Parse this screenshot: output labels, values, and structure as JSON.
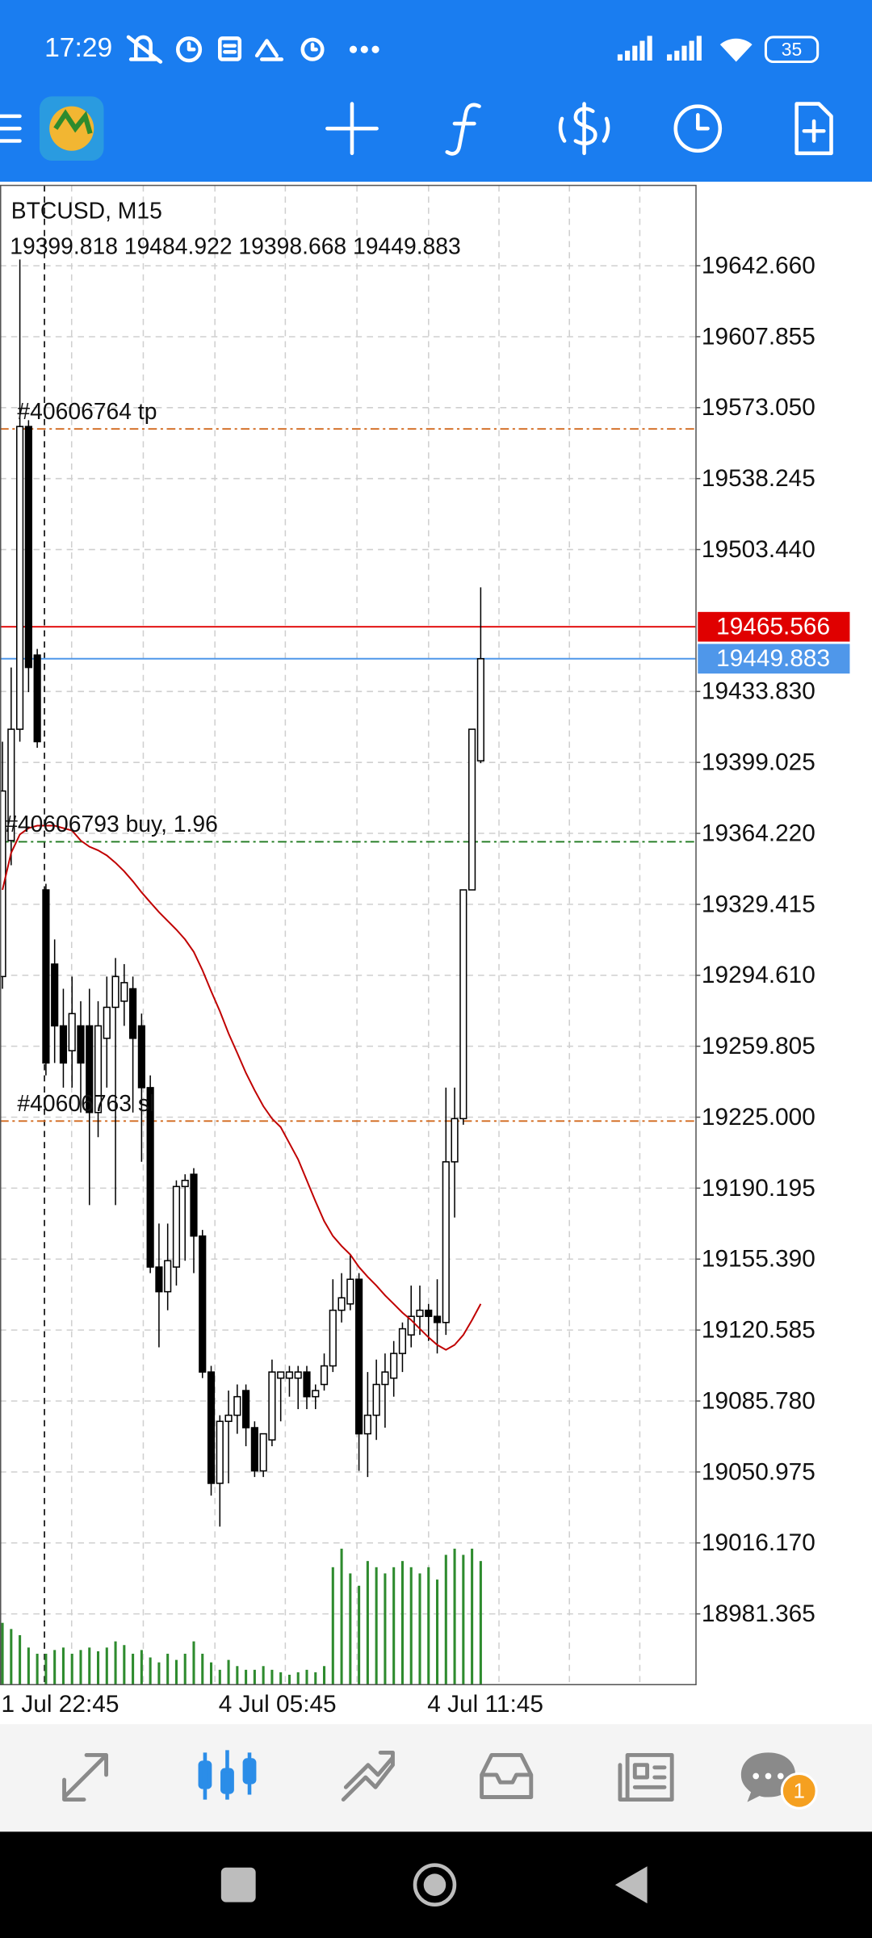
{
  "status_bar": {
    "time": "17:29",
    "battery": 35
  },
  "notification_badge": 1,
  "chart_data": {
    "type": "candlestick",
    "title": "BTCUSD, M15",
    "categories": [
      "1 Jul 22:45",
      null,
      null,
      null,
      null,
      null,
      null,
      null,
      null,
      null,
      null,
      null,
      null,
      null,
      null,
      null,
      null,
      null,
      null,
      null,
      null,
      null,
      null,
      null,
      null,
      "4 Jul 05:45",
      null,
      null,
      null,
      null,
      null,
      null,
      null,
      null,
      null,
      null,
      null,
      null,
      null,
      null,
      null,
      null,
      null,
      null,
      null,
      null,
      null,
      null,
      null,
      "4 Jul 11:45",
      null,
      null,
      null,
      null,
      null,
      null
    ],
    "candles": [
      [
        19294.0,
        19409.2,
        19288.0,
        19385.0
      ],
      [
        19360.7,
        19445.6,
        19348.6,
        19415.3
      ],
      [
        19415.3,
        19645.7,
        19409.2,
        19563.8
      ],
      [
        19563.8,
        19566.9,
        19433.5,
        19445.6
      ],
      [
        19451.7,
        19454.7,
        19406.2,
        19409.2
      ],
      [
        19336.5,
        19339.5,
        19245.5,
        19251.6
      ],
      [
        19300.1,
        19312.2,
        19251.6,
        19269.8
      ],
      [
        19269.8,
        19288.0,
        19239.5,
        19251.6
      ],
      [
        19257.6,
        19294.0,
        19239.5,
        19275.8
      ],
      [
        19269.8,
        19281.9,
        19227.3,
        19251.6
      ],
      [
        19269.8,
        19288.0,
        19181.9,
        19227.3
      ],
      [
        19227.3,
        19281.9,
        19215.2,
        19269.8
      ],
      [
        19263.7,
        19294.0,
        19239.5,
        19278.9
      ],
      [
        19278.9,
        19303.1,
        19181.9,
        19294.0
      ],
      [
        19281.9,
        19300.1,
        19269.8,
        19291.0
      ],
      [
        19288.0,
        19294.0,
        19227.3,
        19263.7
      ],
      [
        19269.8,
        19275.8,
        19203.1,
        19239.5
      ],
      [
        19239.5,
        19245.5,
        19148.5,
        19151.5
      ],
      [
        19151.5,
        19172.8,
        19112.1,
        19139.4
      ],
      [
        19139.4,
        19172.8,
        19130.3,
        19154.6
      ],
      [
        19151.5,
        19194.0,
        19142.4,
        19191.0
      ],
      [
        19191.0,
        19197.0,
        19154.6,
        19194.0
      ],
      [
        19197.0,
        19200.0,
        19148.5,
        19166.7
      ],
      [
        19166.7,
        19169.7,
        19097.0,
        19100.0
      ],
      [
        19100.0,
        19103.0,
        19039.4,
        19045.4
      ],
      [
        19045.4,
        19078.8,
        19024.2,
        19075.8
      ],
      [
        19075.8,
        19090.9,
        19045.4,
        19078.8
      ],
      [
        19078.8,
        19093.9,
        19069.7,
        19087.9
      ],
      [
        19090.9,
        19093.9,
        19063.6,
        19072.7
      ],
      [
        19072.7,
        19075.8,
        19048.5,
        19051.5
      ],
      [
        19051.5,
        19069.7,
        19048.5,
        19069.7
      ],
      [
        19066.7,
        19106.1,
        19063.6,
        19100.0
      ],
      [
        19097.0,
        19100.0,
        19075.8,
        19100.0
      ],
      [
        19097.0,
        19103.0,
        19087.9,
        19100.0
      ],
      [
        19097.0,
        19103.0,
        19081.8,
        19100.0
      ],
      [
        19100.0,
        19103.0,
        19081.8,
        19087.9
      ],
      [
        19087.9,
        19093.9,
        19081.8,
        19090.9
      ],
      [
        19093.9,
        19109.1,
        19090.9,
        19103.0
      ],
      [
        19103.0,
        19145.5,
        19100.0,
        19130.3
      ],
      [
        19130.3,
        19148.5,
        19124.3,
        19136.4
      ],
      [
        19133.4,
        19157.6,
        19130.3,
        19145.5
      ],
      [
        19145.5,
        19148.5,
        19051.5,
        19069.7
      ],
      [
        19069.7,
        19100.0,
        19048.5,
        19078.8
      ],
      [
        19078.8,
        19106.1,
        19066.7,
        19093.9
      ],
      [
        19093.9,
        19109.1,
        19072.7,
        19100.0
      ],
      [
        19097.0,
        19115.2,
        19087.9,
        19109.1
      ],
      [
        19109.1,
        19124.3,
        19100.0,
        19121.2
      ],
      [
        19118.2,
        19142.4,
        19112.1,
        19127.3
      ],
      [
        19127.3,
        19142.4,
        19118.2,
        19130.3
      ],
      [
        19130.3,
        19133.4,
        19115.2,
        19127.3
      ],
      [
        19127.3,
        19145.5,
        19109.1,
        19124.3
      ],
      [
        19124.3,
        19239.5,
        19118.2,
        19203.1
      ],
      [
        19203.1,
        19239.5,
        19175.8,
        19224.3
      ],
      [
        19224.3,
        19336.5,
        19221.3,
        19336.5
      ],
      [
        19336.5,
        19415.3,
        19336.5,
        19415.3
      ],
      [
        19399.818,
        19484.922,
        19398.668,
        19449.883
      ]
    ],
    "bull_color": "#ffffff",
    "bear_color": "#000000",
    "ma": {
      "color": "#c00000",
      "values": [
        19336.5,
        19354.7,
        19363.7,
        19366.8,
        19368.0,
        19368.0,
        19368.0,
        19366.8,
        19365.6,
        19360.7,
        19357.7,
        19355.9,
        19353.4,
        19349.8,
        19345.6,
        19340.7,
        19335.3,
        19330.4,
        19325.6,
        19321.3,
        19317.0,
        19312.2,
        19306.1,
        19297.1,
        19286.8,
        19277.0,
        19266.1,
        19256.5,
        19246.7,
        19238.2,
        19230.4,
        19224.3,
        19220.1,
        19212.2,
        19204.3,
        19194.0,
        19183.7,
        19174.0,
        19166.7,
        19161.8,
        19157.6,
        19151.5,
        19146.7,
        19142.4,
        19137.6,
        19133.4,
        19129.1,
        19125.5,
        19121.2,
        19117.0,
        19113.3,
        19110.9,
        19113.3,
        19118.2,
        19125.5,
        19133.4
      ]
    },
    "volume": {
      "color": "#2e8b2e",
      "lim": [
        0,
        120
      ],
      "values": [
        50,
        45,
        40,
        30,
        25,
        25,
        28,
        30,
        25,
        28,
        30,
        27,
        30,
        35,
        32,
        25,
        28,
        22,
        18,
        25,
        20,
        25,
        35,
        25,
        18,
        12,
        20,
        15,
        12,
        12,
        15,
        12,
        10,
        8,
        10,
        12,
        10,
        15,
        95,
        110,
        90,
        80,
        100,
        95,
        90,
        95,
        100,
        95,
        90,
        95,
        85,
        105,
        110,
        105,
        110,
        100
      ]
    },
    "ylim": [
      18946.66,
      19682.07
    ],
    "yticks": [
      {
        "value": 19642.66,
        "label": "19642.660"
      },
      {
        "value": 19607.855,
        "label": "19607.855"
      },
      {
        "value": 19573.05,
        "label": "19573.050"
      },
      {
        "value": 19538.245,
        "label": "19538.245"
      },
      {
        "value": 19503.44,
        "label": "19503.440"
      },
      {
        "value": 19433.83,
        "label": "19433.830"
      },
      {
        "value": 19399.025,
        "label": "19399.025"
      },
      {
        "value": 19364.22,
        "label": "19364.220"
      },
      {
        "value": 19329.415,
        "label": "19329.415"
      },
      {
        "value": 19294.61,
        "label": "19294.610"
      },
      {
        "value": 19259.805,
        "label": "19259.805"
      },
      {
        "value": 19225,
        "label": "19225.000"
      },
      {
        "value": 19190.195,
        "label": "19190.195"
      },
      {
        "value": 19155.39,
        "label": "19155.390"
      },
      {
        "value": 19120.585,
        "label": "19120.585"
      },
      {
        "value": 19085.78,
        "label": "19085.780"
      },
      {
        "value": 19050.975,
        "label": "19050.975"
      },
      {
        "value": 19016.17,
        "label": "19016.170"
      },
      {
        "value": 18981.365,
        "label": "18981.365"
      }
    ],
    "grid": true,
    "ask": {
      "value": 19465.566,
      "color": "#e00000"
    },
    "bid_color": "#4f97ea",
    "orders": [
      {
        "label": "#40606764 tp",
        "value": 19562.6,
        "color": "#d2691e"
      },
      {
        "label": "#40606793 buy, 1.96",
        "value": 19360.1,
        "color": "#1f7a1f"
      },
      {
        "label": "#40606763 sl",
        "value": 19223.1,
        "color": "#d2691e"
      }
    ]
  }
}
